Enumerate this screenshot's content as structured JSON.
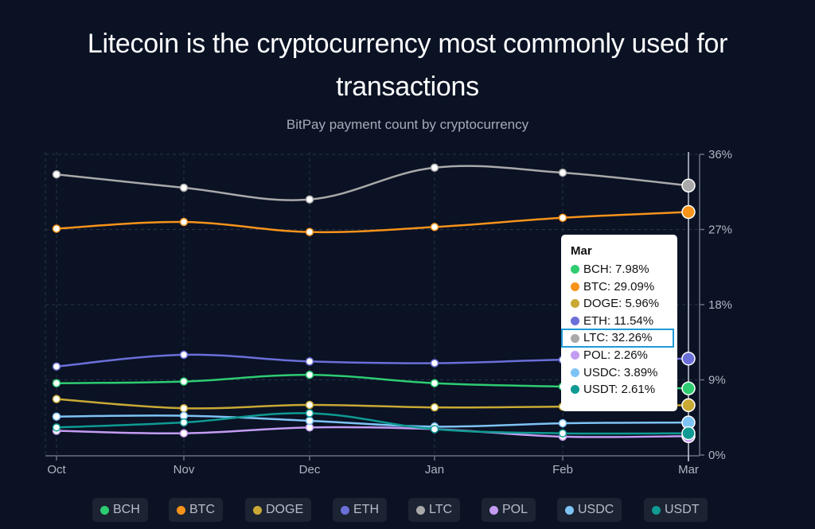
{
  "header": {
    "title_line1": "Litecoin is the cryptocurrency most commonly used for",
    "title_line2": "transactions",
    "subtitle": "BitPay payment count by cryptocurrency"
  },
  "tooltip": {
    "title": "Mar",
    "highlighted": "LTC",
    "rows": [
      {
        "key": "BCH",
        "text": "BCH: 7.98%"
      },
      {
        "key": "BTC",
        "text": "BTC: 29.09%"
      },
      {
        "key": "DOGE",
        "text": "DOGE: 5.96%"
      },
      {
        "key": "ETH",
        "text": "ETH: 11.54%"
      },
      {
        "key": "LTC",
        "text": "LTC: 32.26%"
      },
      {
        "key": "POL",
        "text": "POL: 2.26%"
      },
      {
        "key": "USDC",
        "text": "USDC: 3.89%"
      },
      {
        "key": "USDT",
        "text": "USDT: 2.61%"
      }
    ]
  },
  "colors": {
    "BCH": "#2ecc71",
    "BTC": "#f7931a",
    "DOGE": "#c9a934",
    "ETH": "#6b6fd8",
    "LTC": "#a9a9a9",
    "POL": "#c39cf2",
    "USDC": "#7ec3f5",
    "USDT": "#0f9a92",
    "highlight": "#1e9bd7",
    "background": "#0a1224"
  },
  "chart_data": {
    "type": "line",
    "title": "Litecoin is the cryptocurrency most commonly used for transactions",
    "subtitle": "BitPay payment count by cryptocurrency",
    "xlabel": "",
    "ylabel": "",
    "categories": [
      "Oct",
      "Nov",
      "Dec",
      "Jan",
      "Feb",
      "Mar"
    ],
    "ylim": [
      0,
      36
    ],
    "yticks": [
      0,
      9,
      18,
      27,
      36
    ],
    "ytick_labels": [
      "0%",
      "9%",
      "18%",
      "27%",
      "36%"
    ],
    "y_axis_position": "right",
    "grid": true,
    "legend_position": "bottom",
    "hover_category": "Mar",
    "series": [
      {
        "name": "BCH",
        "values": [
          8.6,
          8.8,
          9.6,
          8.6,
          8.2,
          7.98
        ]
      },
      {
        "name": "BTC",
        "values": [
          27.1,
          27.9,
          26.7,
          27.3,
          28.4,
          29.09
        ]
      },
      {
        "name": "DOGE",
        "values": [
          6.7,
          5.6,
          6.0,
          5.7,
          5.8,
          5.96
        ]
      },
      {
        "name": "ETH",
        "values": [
          10.6,
          12.0,
          11.2,
          11.0,
          11.4,
          11.54
        ]
      },
      {
        "name": "LTC",
        "values": [
          33.6,
          32.0,
          30.6,
          34.4,
          33.8,
          32.26
        ]
      },
      {
        "name": "POL",
        "values": [
          2.9,
          2.6,
          3.3,
          3.1,
          2.2,
          2.26
        ]
      },
      {
        "name": "USDC",
        "values": [
          4.6,
          4.7,
          4.1,
          3.4,
          3.8,
          3.89
        ]
      },
      {
        "name": "USDT",
        "values": [
          3.3,
          3.9,
          5.0,
          3.1,
          2.6,
          2.61
        ]
      }
    ]
  }
}
